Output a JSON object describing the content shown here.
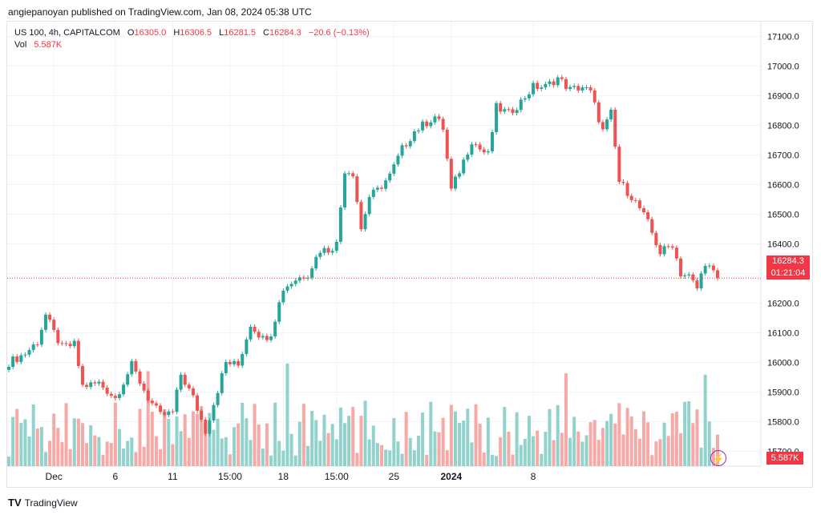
{
  "header": {
    "published": "angiepanoyan published on TradingView.com, Jan 08, 2024 05:38 UTC"
  },
  "legend": {
    "symbol": "US 100, 4h, CAPITALCOM",
    "o_label": "O",
    "o_value": "16305.0",
    "h_label": "H",
    "h_value": "16306.5",
    "l_label": "L",
    "l_value": "16281.5",
    "c_label": "C",
    "c_value": "16284.3",
    "change": "−20.6 (−0.13%)",
    "vol_label": "Vol",
    "vol_value": "5.587K"
  },
  "price_label": {
    "price": "16284.3",
    "countdown": "01:21:04"
  },
  "volume_label": "5.587K",
  "footer": {
    "brand": "TradingView"
  },
  "colors": {
    "up": "#26a69a",
    "down": "#ef5350",
    "up_vol": "#92d2cc",
    "down_vol": "#f7a9a7",
    "last_price": "#f23645"
  },
  "chart_data": {
    "type": "candlestick",
    "interval": "4h",
    "ylim": [
      15650,
      17150
    ],
    "y_ticks": [
      15700,
      15800,
      15900,
      16000,
      16100,
      16200,
      16300,
      16400,
      16500,
      16600,
      16700,
      16800,
      16900,
      17000,
      17100
    ],
    "x_tick_labels": [
      "Dec",
      "6",
      "11",
      "15:00",
      "18",
      "15:00",
      "25",
      "2024",
      "8"
    ],
    "last_price": 16284.3,
    "close_anchors": [
      [
        0,
        16000
      ],
      [
        4,
        16030
      ],
      [
        7,
        16070
      ],
      [
        9,
        16160
      ],
      [
        11,
        16100
      ],
      [
        13,
        16050
      ],
      [
        16,
        16060
      ],
      [
        18,
        15920
      ],
      [
        22,
        15930
      ],
      [
        26,
        15880
      ],
      [
        30,
        15990
      ],
      [
        34,
        15880
      ],
      [
        37,
        15820
      ],
      [
        40,
        15830
      ],
      [
        42,
        15960
      ],
      [
        45,
        15880
      ],
      [
        48,
        15770
      ],
      [
        53,
        16000
      ],
      [
        56,
        15990
      ],
      [
        59,
        16130
      ],
      [
        62,
        16080
      ],
      [
        64,
        16100
      ],
      [
        67,
        16250
      ],
      [
        70,
        16280
      ],
      [
        73,
        16300
      ],
      [
        76,
        16380
      ],
      [
        78,
        16380
      ],
      [
        80,
        16400
      ],
      [
        82,
        16650
      ],
      [
        84,
        16640
      ],
      [
        86,
        16450
      ],
      [
        88,
        16560
      ],
      [
        90,
        16580
      ],
      [
        93,
        16630
      ],
      [
        96,
        16720
      ],
      [
        99,
        16780
      ],
      [
        101,
        16800
      ],
      [
        104,
        16830
      ],
      [
        106,
        16790
      ],
      [
        108,
        16580
      ],
      [
        111,
        16680
      ],
      [
        113,
        16750
      ],
      [
        115,
        16720
      ],
      [
        117,
        16700
      ],
      [
        119,
        16860
      ],
      [
        122,
        16840
      ],
      [
        125,
        16880
      ],
      [
        128,
        16930
      ],
      [
        131,
        16930
      ],
      [
        134,
        16960
      ],
      [
        137,
        16920
      ],
      [
        140,
        16930
      ],
      [
        142,
        16910
      ],
      [
        145,
        16780
      ],
      [
        147,
        16840
      ],
      [
        149,
        16610
      ],
      [
        152,
        16560
      ],
      [
        154,
        16520
      ],
      [
        156,
        16470
      ],
      [
        159,
        16370
      ],
      [
        162,
        16400
      ],
      [
        164,
        16300
      ],
      [
        166,
        16290
      ],
      [
        168,
        16250
      ],
      [
        170,
        16340
      ],
      [
        172,
        16300
      ],
      [
        173,
        16284.3
      ]
    ],
    "volume": "5.587K"
  }
}
